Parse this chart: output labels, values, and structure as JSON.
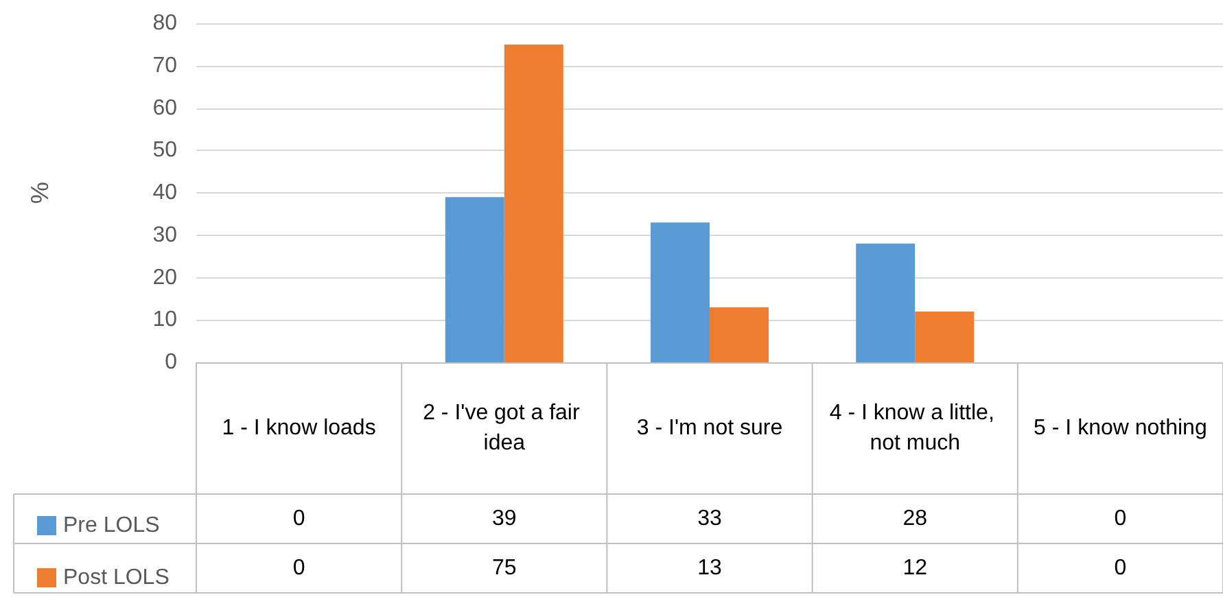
{
  "chart_data": {
    "type": "bar",
    "ylabel": "%",
    "categories": [
      "1 - I know loads",
      "2 - I've got a fair idea",
      "3 - I'm not sure",
      "4 - I know a little, not much",
      "5 - I know nothing"
    ],
    "series": [
      {
        "name": "Pre LOLS",
        "color": "#5b9bd5",
        "values": [
          0,
          39,
          33,
          28,
          0
        ]
      },
      {
        "name": "Post LOLS",
        "color": "#ed7d31",
        "values": [
          0,
          75,
          13,
          12,
          0
        ]
      }
    ],
    "ylim": [
      0,
      80
    ],
    "yticks": [
      0,
      10,
      20,
      30,
      40,
      50,
      60,
      70,
      80
    ],
    "grid": "y",
    "legend": "bottom",
    "data_labels": true
  }
}
